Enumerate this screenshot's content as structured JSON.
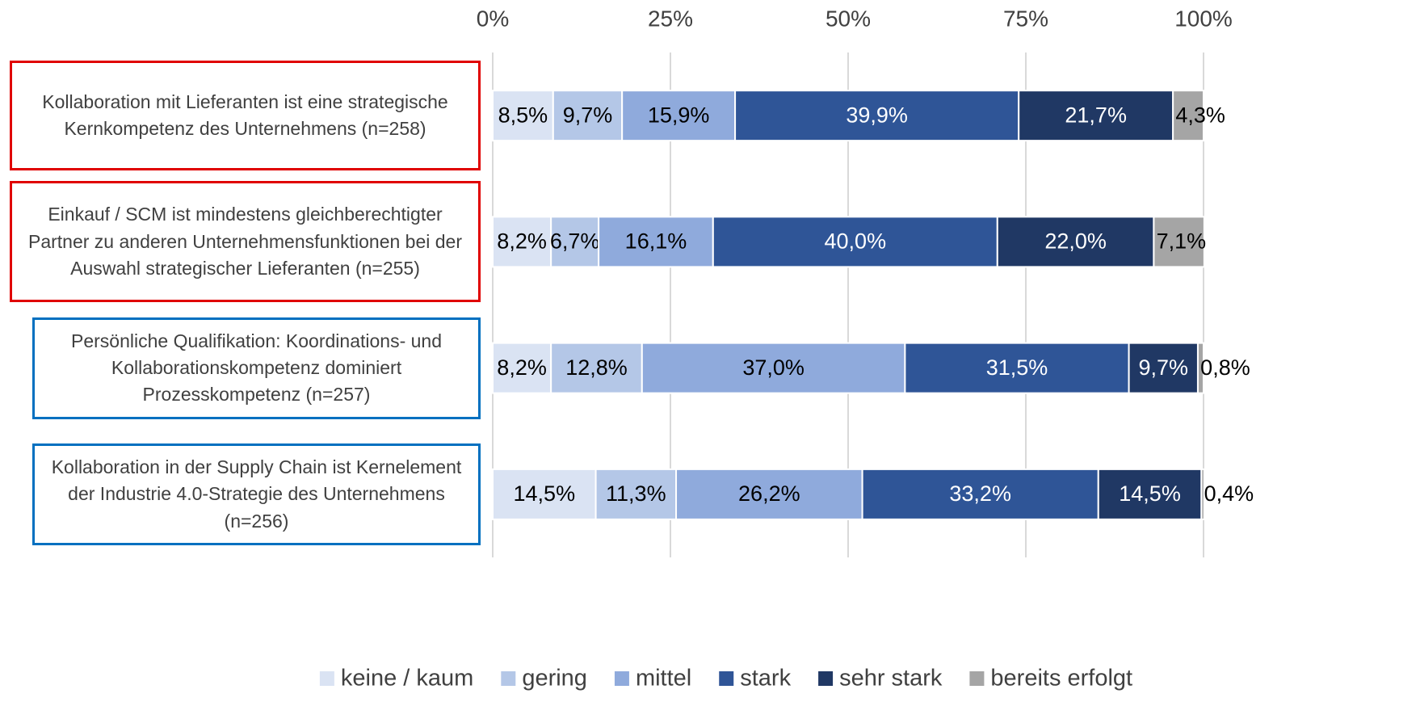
{
  "chart_data": {
    "type": "stacked_bar_horizontal",
    "categories": [
      "Kollaboration mit Lieferanten ist eine strategische Kernkompetenz des Unternehmens (n=258)",
      "Einkauf / SCM ist mindestens gleichberechtigter Partner zu anderen Unternehmensfunktionen bei der Auswahl strategischer Lieferanten (n=255)",
      "Persönliche Qualifikation: Koordinations- und Kollaborationskompetenz dominiert Prozesskompetenz (n=257)",
      "Kollaboration in der Supply Chain ist Kernelement der Industrie 4.0-Strategie des Unternehmens (n=256)"
    ],
    "category_box_colors": [
      "#e00000",
      "#e00000",
      "#0070c0",
      "#0070c0"
    ],
    "series": [
      {
        "name": "keine / kaum",
        "color": "#dae3f3",
        "label_color": "#000000",
        "values": [
          8.5,
          8.2,
          8.2,
          14.5
        ],
        "value_labels": [
          "8,5%",
          "8,2%",
          "8,2%",
          "14,5%"
        ]
      },
      {
        "name": "gering",
        "color": "#b4c7e7",
        "label_color": "#000000",
        "values": [
          9.7,
          6.7,
          12.8,
          11.3
        ],
        "value_labels": [
          "9,7%",
          "6,7%",
          "12,8%",
          "11,3%"
        ]
      },
      {
        "name": "mittel",
        "color": "#8faadc",
        "label_color": "#000000",
        "values": [
          15.9,
          16.1,
          37.0,
          26.2
        ],
        "value_labels": [
          "15,9%",
          "16,1%",
          "37,0%",
          "26,2%"
        ]
      },
      {
        "name": "stark",
        "color": "#2f5597",
        "label_color": "#ffffff",
        "values": [
          39.9,
          40.0,
          31.5,
          33.2
        ],
        "value_labels": [
          "39,9%",
          "40,0%",
          "31,5%",
          "33,2%"
        ]
      },
      {
        "name": "sehr stark",
        "color": "#203864",
        "label_color": "#ffffff",
        "values": [
          21.7,
          22.0,
          9.7,
          14.5
        ],
        "value_labels": [
          "21,7%",
          "22,0%",
          "9,7%",
          "14,5%"
        ]
      },
      {
        "name": "bereits erfolgt",
        "color": "#a5a5a5",
        "label_color": "#000000",
        "values": [
          4.3,
          7.1,
          0.8,
          0.4
        ],
        "value_labels": [
          "4,3%",
          "7,1%",
          "0,8%",
          "0,4%"
        ]
      }
    ],
    "xlim": [
      0,
      100
    ],
    "xticks": [
      {
        "value": 0,
        "label": "0%"
      },
      {
        "value": 25,
        "label": "25%"
      },
      {
        "value": 50,
        "label": "50%"
      },
      {
        "value": 75,
        "label": "75%"
      },
      {
        "value": 100,
        "label": "100%"
      }
    ],
    "grid": true,
    "legend": "bottom"
  }
}
